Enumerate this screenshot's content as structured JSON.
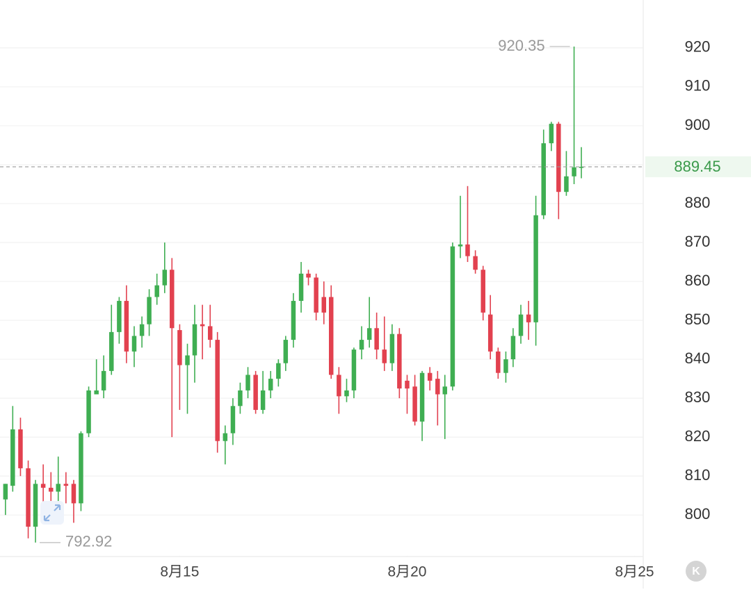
{
  "chart_data": {
    "type": "candlestick",
    "x": [
      11.17,
      11.33,
      11.5,
      11.67,
      11.83,
      12,
      12.17,
      12.33,
      12.5,
      12.67,
      12.83,
      13,
      13.17,
      13.33,
      13.5,
      13.67,
      13.83,
      14,
      14.17,
      14.33,
      14.5,
      14.67,
      14.83,
      15,
      15.17,
      15.33,
      15.5,
      15.67,
      15.83,
      16,
      16.17,
      16.33,
      16.5,
      16.67,
      16.83,
      17,
      17.17,
      17.33,
      17.5,
      17.67,
      17.83,
      18,
      18.17,
      18.33,
      18.5,
      18.67,
      18.83,
      19,
      19.17,
      19.33,
      19.5,
      19.67,
      19.83,
      20,
      20.17,
      20.33,
      20.5,
      20.67,
      20.83,
      21,
      21.17,
      21.33,
      21.5,
      21.67,
      21.83,
      22,
      22.17,
      22.33,
      22.5,
      22.67,
      22.83,
      23,
      23.17,
      23.33,
      23.5,
      23.67,
      23.83
    ],
    "open": [
      804,
      807.5,
      822,
      812,
      797,
      808,
      807,
      806,
      808,
      808,
      803,
      821,
      831,
      832,
      837,
      847,
      855,
      842,
      846,
      849,
      856,
      859,
      863,
      847.5,
      838.5,
      841,
      849,
      848.5,
      845,
      819,
      821,
      828,
      832,
      836,
      827,
      832,
      835,
      839,
      845,
      855,
      862,
      861,
      856,
      856,
      836,
      830.5,
      832,
      842.5,
      845,
      848,
      842.5,
      839,
      846.5,
      834.5,
      833,
      824,
      836.5,
      835,
      831,
      833,
      869,
      869.5,
      866.5,
      863,
      851.5,
      842,
      836.5,
      840,
      846,
      851.5,
      849.5,
      877,
      895.5,
      900.5,
      883,
      887,
      889.3
    ],
    "high": [
      808,
      828,
      825,
      814,
      809,
      813,
      811,
      815,
      811,
      809,
      821.5,
      833,
      840,
      841,
      854,
      856,
      859,
      848.5,
      851,
      858,
      862,
      870,
      866,
      849,
      844,
      854,
      854,
      854,
      847,
      823,
      830,
      834,
      838,
      837,
      837,
      837,
      840,
      846,
      857,
      865,
      863,
      862,
      860,
      859,
      838,
      835,
      843,
      848.5,
      856,
      852,
      851,
      849,
      848,
      836,
      836,
      837,
      838,
      837,
      836,
      870,
      882,
      884.5,
      868,
      864,
      856.5,
      843,
      842,
      848,
      854,
      855,
      882,
      899,
      901,
      901,
      893.5,
      920.35,
      894.5
    ],
    "low": [
      800,
      806,
      810,
      794,
      792.92,
      802,
      798,
      803,
      803,
      798,
      801,
      820,
      831,
      830,
      836,
      844,
      839,
      838,
      843,
      846,
      854,
      857,
      820,
      827,
      826,
      834,
      840,
      843,
      816,
      813,
      818,
      826,
      830,
      826,
      826,
      830,
      833,
      837,
      843,
      852,
      859,
      850,
      849,
      835,
      826,
      829,
      830,
      840,
      843,
      840,
      837,
      837,
      830,
      826,
      823,
      819,
      832,
      823,
      819.5,
      832,
      866,
      865,
      862,
      850,
      840,
      835,
      834,
      838,
      844,
      845,
      843.5,
      876,
      893.5,
      876,
      882,
      885,
      886.5
    ],
    "close": [
      808,
      822,
      812,
      797,
      808,
      807,
      806,
      808,
      807.5,
      803,
      821,
      832,
      832,
      837,
      847,
      855,
      842,
      846,
      849,
      856,
      859,
      863,
      848,
      838.5,
      841,
      849,
      848.5,
      845,
      819,
      821,
      828,
      832,
      836,
      827,
      832,
      835,
      839,
      845,
      855,
      862,
      861,
      852,
      852,
      836,
      830.5,
      832,
      842.5,
      845,
      848,
      842.5,
      839,
      846.5,
      832.5,
      832.5,
      824,
      836.5,
      834.5,
      831,
      833,
      869,
      869.5,
      866.5,
      863,
      852,
      842,
      836.5,
      840,
      846,
      851.5,
      849.5,
      877,
      895.5,
      900.5,
      883,
      887,
      889.3,
      889.45
    ],
    "up_color": "#3fae52",
    "down_color": "#e2414f",
    "xlim": [
      11.05,
      25.19
    ],
    "xticks": [
      {
        "value": 15,
        "label": "8月15"
      },
      {
        "value": 20,
        "label": "8月20"
      },
      {
        "value": 25,
        "label": "8月25"
      }
    ],
    "ylim": [
      789.5,
      932.3
    ],
    "yticks": [
      800,
      810,
      820,
      830,
      840,
      850,
      860,
      870,
      880,
      890,
      900,
      910,
      920
    ],
    "grid": true,
    "max_marker": 920.35,
    "min_marker": 792.92,
    "last_price": 889.45,
    "last_price_color": "#3a9a4a",
    "period_button": "K"
  }
}
